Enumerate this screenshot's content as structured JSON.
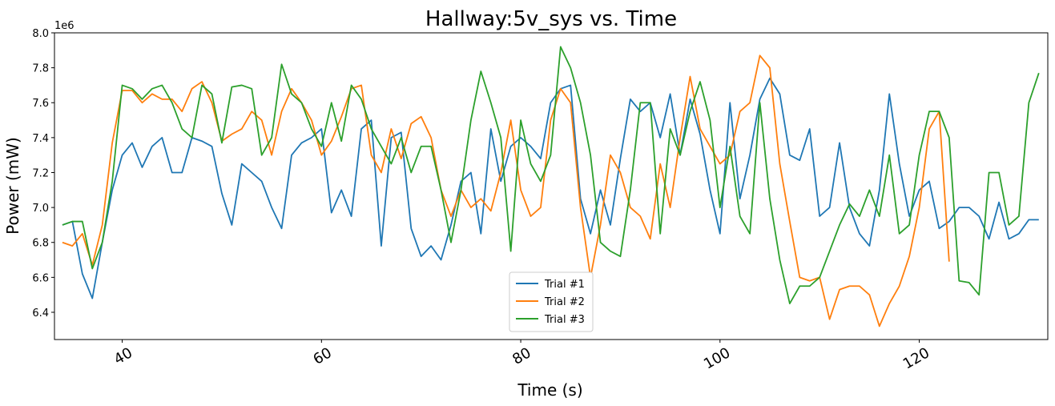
{
  "chart_data": {
    "type": "line",
    "title": "Hallway:5v_sys vs. Time",
    "x_label": "Time (s)",
    "y_label": "Power (mW)",
    "y_offset_label": "1e6",
    "xlim": [
      33.2,
      132.9
    ],
    "xticks": [
      40,
      60,
      80,
      100,
      120
    ],
    "ylim": [
      6244000,
      8000000
    ],
    "yticks": [
      {
        "value": 6400000,
        "label": "6.4"
      },
      {
        "value": 6600000,
        "label": "6.6"
      },
      {
        "value": 6800000,
        "label": "6.8"
      },
      {
        "value": 7000000,
        "label": "7.0"
      },
      {
        "value": 7200000,
        "label": "7.2"
      },
      {
        "value": 7400000,
        "label": "7.4"
      },
      {
        "value": 7600000,
        "label": "7.6"
      },
      {
        "value": 7800000,
        "label": "7.8"
      },
      {
        "value": 8000000,
        "label": "8.0"
      }
    ],
    "legend": "lower center",
    "grid": false,
    "x": [
      34,
      35,
      36,
      37,
      38,
      39,
      40,
      41,
      42,
      43,
      44,
      45,
      46,
      47,
      48,
      49,
      50,
      51,
      52,
      53,
      54,
      55,
      56,
      57,
      58,
      59,
      60,
      61,
      62,
      63,
      64,
      65,
      66,
      67,
      68,
      69,
      70,
      71,
      72,
      73,
      74,
      75,
      76,
      77,
      78,
      79,
      80,
      81,
      82,
      83,
      84,
      85,
      86,
      87,
      88,
      89,
      90,
      91,
      92,
      93,
      94,
      95,
      96,
      97,
      98,
      99,
      100,
      101,
      102,
      103,
      104,
      105,
      106,
      107,
      108,
      109,
      110,
      111,
      112,
      113,
      114,
      115,
      116,
      117,
      118,
      119,
      120,
      121,
      122,
      123,
      124,
      125,
      126,
      127,
      128,
      129,
      130,
      131,
      132
    ],
    "series": [
      {
        "name": "Trial #1",
        "color": "#1f77b4",
        "values": [
          6900000,
          6920000,
          6620000,
          6480000,
          6800000,
          7100000,
          7300000,
          7370000,
          7230000,
          7350000,
          7400000,
          7200000,
          7200000,
          7400000,
          7380000,
          7350000,
          7080000,
          6900000,
          7250000,
          7200000,
          7150000,
          7000000,
          6880000,
          7300000,
          7370000,
          7400000,
          7450000,
          6970000,
          7100000,
          6950000,
          7450000,
          7500000,
          6780000,
          7400000,
          7430000,
          6880000,
          6720000,
          6780000,
          6700000,
          6900000,
          7150000,
          7200000,
          6850000,
          7450000,
          7150000,
          7350000,
          7400000,
          7350000,
          7280000,
          7600000,
          7680000,
          7700000,
          7050000,
          6850000,
          7100000,
          6900000,
          7280000,
          7620000,
          7550000,
          7600000,
          7400000,
          7650000,
          7300000,
          7620000,
          7420000,
          7100000,
          6850000,
          7600000,
          7050000,
          7300000,
          7620000,
          7740000,
          7650000,
          7300000,
          7270000,
          7450000,
          6950000,
          7000000,
          7370000,
          7000000,
          6850000,
          6780000,
          7100000,
          7650000,
          7250000,
          6950000,
          7100000,
          7150000,
          6880000,
          6920000,
          7000000,
          7000000,
          6950000,
          6820000,
          7030000,
          6820000,
          6850000,
          6930000,
          6930000
        ]
      },
      {
        "name": "Trial #2",
        "color": "#ff7f0e",
        "values": [
          6800000,
          6780000,
          6850000,
          6670000,
          6900000,
          7370000,
          7670000,
          7670000,
          7600000,
          7650000,
          7620000,
          7620000,
          7550000,
          7680000,
          7720000,
          7600000,
          7380000,
          7420000,
          7450000,
          7550000,
          7500000,
          7300000,
          7550000,
          7680000,
          7600000,
          7500000,
          7300000,
          7380000,
          7520000,
          7680000,
          7700000,
          7300000,
          7200000,
          7450000,
          7280000,
          7480000,
          7520000,
          7400000,
          7100000,
          6950000,
          7100000,
          7000000,
          7050000,
          6980000,
          7200000,
          7500000,
          7100000,
          6950000,
          7000000,
          7500000,
          7680000,
          7600000,
          7000000,
          6600000,
          6900000,
          7300000,
          7200000,
          7000000,
          6950000,
          6820000,
          7250000,
          7000000,
          7400000,
          7750000,
          7450000,
          7350000,
          7250000,
          7300000,
          7550000,
          7600000,
          7870000,
          7800000,
          7250000,
          6920000,
          6600000,
          6580000,
          6600000,
          6360000,
          6530000,
          6550000,
          6550000,
          6500000,
          6320000,
          6450000,
          6550000,
          6720000,
          7000000,
          7450000,
          7550000,
          6690000,
          null,
          null,
          null,
          null,
          null,
          null,
          null,
          null,
          null
        ]
      },
      {
        "name": "Trial #3",
        "color": "#2ca02c",
        "values": [
          6900000,
          6920000,
          6920000,
          6650000,
          6800000,
          7150000,
          7700000,
          7680000,
          7620000,
          7680000,
          7700000,
          7600000,
          7450000,
          7400000,
          7700000,
          7650000,
          7370000,
          7690000,
          7700000,
          7680000,
          7300000,
          7400000,
          7820000,
          7650000,
          7600000,
          7450000,
          7350000,
          7600000,
          7380000,
          7700000,
          7620000,
          7450000,
          7350000,
          7250000,
          7400000,
          7200000,
          7350000,
          7350000,
          7100000,
          6800000,
          7100000,
          7500000,
          7780000,
          7600000,
          7400000,
          6750000,
          7500000,
          7250000,
          7150000,
          7300000,
          7920000,
          7800000,
          7600000,
          7300000,
          6800000,
          6750000,
          6720000,
          7100000,
          7600000,
          7600000,
          6850000,
          7450000,
          7300000,
          7550000,
          7720000,
          7500000,
          7000000,
          7350000,
          6950000,
          6850000,
          7600000,
          7050000,
          6700000,
          6450000,
          6550000,
          6550000,
          6600000,
          6750000,
          6900000,
          7020000,
          6950000,
          7100000,
          6950000,
          7300000,
          6850000,
          6900000,
          7300000,
          7550000,
          7550000,
          7400000,
          6580000,
          6570000,
          6500000,
          7200000,
          7200000,
          6900000,
          6950000,
          7600000,
          7770000
        ]
      }
    ]
  }
}
